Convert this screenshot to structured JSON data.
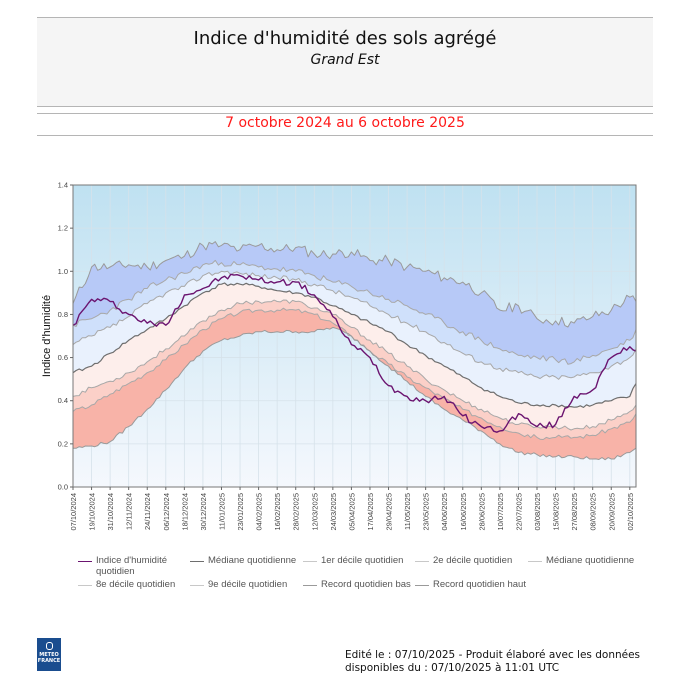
{
  "header": {
    "title": "Indice d'humidité des sols agrégé",
    "subtitle": "Grand Est",
    "period": "7 octobre 2024 au 6 octobre 2025"
  },
  "footer": {
    "line1": "Edité le : 07/10/2025 - Produit élaboré avec les données",
    "line2": "disponibles du : 07/10/2025 à 11:01 UTC"
  },
  "logo": {
    "line1": "METEO",
    "line2": "FRANCE",
    "icon": "meteo-france-logo-icon"
  },
  "colors": {
    "indice": "#6b1470",
    "median_line": "#6e6e6e",
    "decile_line": "#9a9a9a",
    "band_record_high": "#b7c9f7",
    "band_9e": "#cfe0fb",
    "band_8e": "#e9f1fd",
    "band_2e": "#fdeeeb",
    "band_1er": "#fbd0c8",
    "band_record_low": "#f8b3a8"
  },
  "chart_data": {
    "type": "area",
    "title": "Indice d'humidité des sols agrégé",
    "subtitle": "Grand Est",
    "xlabel": "",
    "ylabel": "Indice d'humidité",
    "ylim": [
      0,
      1.4
    ],
    "yticks": [
      "0.0",
      "0.2",
      "0.4",
      "0.6",
      "0.8",
      "1.0",
      "1.2",
      "1.4"
    ],
    "grid": true,
    "x_start": "07/10/2024",
    "x_end": "06/10/2025",
    "x_days_total": 364,
    "x_step_days": 12,
    "xticks": [
      "07/10/2024",
      "19/10/2024",
      "31/10/2024",
      "12/11/2024",
      "24/11/2024",
      "06/12/2024",
      "18/12/2024",
      "30/12/2024",
      "11/01/2025",
      "23/01/2025",
      "04/02/2025",
      "16/02/2025",
      "28/02/2025",
      "12/03/2025",
      "24/03/2025",
      "05/04/2025",
      "17/04/2025",
      "29/04/2025",
      "11/05/2025",
      "23/05/2025",
      "04/06/2025",
      "16/06/2025",
      "28/06/2025",
      "10/07/2025",
      "22/07/2025",
      "03/08/2025",
      "15/08/2025",
      "27/08/2025",
      "08/09/2025",
      "20/09/2025",
      "02/10/2025"
    ],
    "x_days": [
      0,
      12,
      24,
      36,
      48,
      60,
      72,
      84,
      96,
      108,
      120,
      132,
      144,
      156,
      168,
      180,
      192,
      204,
      216,
      228,
      240,
      252,
      264,
      276,
      288,
      300,
      312,
      324,
      336,
      348,
      360,
      364
    ],
    "series": [
      {
        "name": "Record quotidien haut",
        "values": [
          0.85,
          1.02,
          1.02,
          1.03,
          1.02,
          1.05,
          1.07,
          1.12,
          1.12,
          1.1,
          1.12,
          1.1,
          1.11,
          1.08,
          1.08,
          1.09,
          1.05,
          1.05,
          1.02,
          1.0,
          0.97,
          0.95,
          0.9,
          0.82,
          0.84,
          0.78,
          0.77,
          0.76,
          0.79,
          0.82,
          0.88,
          0.86
        ]
      },
      {
        "name": "9e décile quotidien",
        "values": [
          0.75,
          0.78,
          0.82,
          0.87,
          0.92,
          0.96,
          0.99,
          1.03,
          1.04,
          1.03,
          1.02,
          1.01,
          1.0,
          0.98,
          0.95,
          0.93,
          0.9,
          0.87,
          0.84,
          0.8,
          0.76,
          0.72,
          0.68,
          0.64,
          0.61,
          0.6,
          0.59,
          0.58,
          0.61,
          0.64,
          0.68,
          0.73
        ]
      },
      {
        "name": "8e décile quotidien",
        "values": [
          0.66,
          0.7,
          0.74,
          0.79,
          0.85,
          0.9,
          0.93,
          0.98,
          1.0,
          0.99,
          0.98,
          0.97,
          0.96,
          0.94,
          0.91,
          0.88,
          0.84,
          0.8,
          0.76,
          0.72,
          0.67,
          0.62,
          0.58,
          0.55,
          0.53,
          0.51,
          0.51,
          0.51,
          0.53,
          0.56,
          0.6,
          0.64
        ]
      },
      {
        "name": "Médiane quotidienne",
        "values": [
          0.53,
          0.56,
          0.62,
          0.68,
          0.73,
          0.78,
          0.84,
          0.9,
          0.94,
          0.94,
          0.93,
          0.91,
          0.9,
          0.88,
          0.84,
          0.8,
          0.76,
          0.72,
          0.66,
          0.61,
          0.56,
          0.51,
          0.46,
          0.42,
          0.39,
          0.38,
          0.38,
          0.37,
          0.38,
          0.4,
          0.42,
          0.48
        ]
      },
      {
        "name": "2e décile quotidien",
        "values": [
          0.42,
          0.46,
          0.49,
          0.53,
          0.58,
          0.64,
          0.7,
          0.77,
          0.82,
          0.85,
          0.86,
          0.86,
          0.86,
          0.83,
          0.8,
          0.74,
          0.68,
          0.62,
          0.56,
          0.5,
          0.45,
          0.4,
          0.36,
          0.32,
          0.29,
          0.28,
          0.28,
          0.27,
          0.28,
          0.31,
          0.35,
          0.38
        ]
      },
      {
        "name": "1er décile quotidien",
        "values": [
          0.35,
          0.38,
          0.43,
          0.48,
          0.53,
          0.59,
          0.66,
          0.73,
          0.78,
          0.81,
          0.82,
          0.82,
          0.82,
          0.8,
          0.76,
          0.7,
          0.63,
          0.57,
          0.51,
          0.46,
          0.41,
          0.36,
          0.32,
          0.28,
          0.25,
          0.23,
          0.23,
          0.23,
          0.24,
          0.27,
          0.3,
          0.34
        ]
      },
      {
        "name": "Record quotidien bas",
        "values": [
          0.18,
          0.19,
          0.21,
          0.28,
          0.36,
          0.45,
          0.55,
          0.63,
          0.68,
          0.7,
          0.72,
          0.72,
          0.72,
          0.72,
          0.74,
          0.7,
          0.63,
          0.56,
          0.49,
          0.42,
          0.36,
          0.31,
          0.26,
          0.2,
          0.16,
          0.15,
          0.14,
          0.14,
          0.13,
          0.13,
          0.16,
          0.18
        ]
      },
      {
        "name": "Indice d'humidité quotidien",
        "values": [
          0.75,
          0.87,
          0.86,
          0.8,
          0.76,
          0.75,
          0.89,
          0.92,
          0.97,
          0.98,
          0.96,
          0.95,
          0.95,
          0.89,
          0.79,
          0.66,
          0.6,
          0.47,
          0.42,
          0.4,
          0.42,
          0.33,
          0.28,
          0.26,
          0.34,
          0.28,
          0.29,
          0.42,
          0.45,
          0.6,
          0.65,
          0.63
        ]
      }
    ],
    "legend": [
      {
        "label": "Indice d'humidité quotidien",
        "color": "#6b1470"
      },
      {
        "label": "Médiane quotidienne",
        "color": "#6e6e6e"
      },
      {
        "label": "1er décile quotidien",
        "color": "#bcbcbc"
      },
      {
        "label": "2e décile quotidien",
        "color": "#bcbcbc"
      },
      {
        "label": "Médiane quotidienne",
        "color": "#bcbcbc"
      },
      {
        "label": "8e décile quotidien",
        "color": "#bcbcbc"
      },
      {
        "label": "9e décile quotidien",
        "color": "#bcbcbc"
      },
      {
        "label": "Record quotidien bas",
        "color": "#9a9a9a"
      },
      {
        "label": "Record quotidien haut",
        "color": "#9a9a9a"
      }
    ],
    "legend_position": "bottom"
  }
}
